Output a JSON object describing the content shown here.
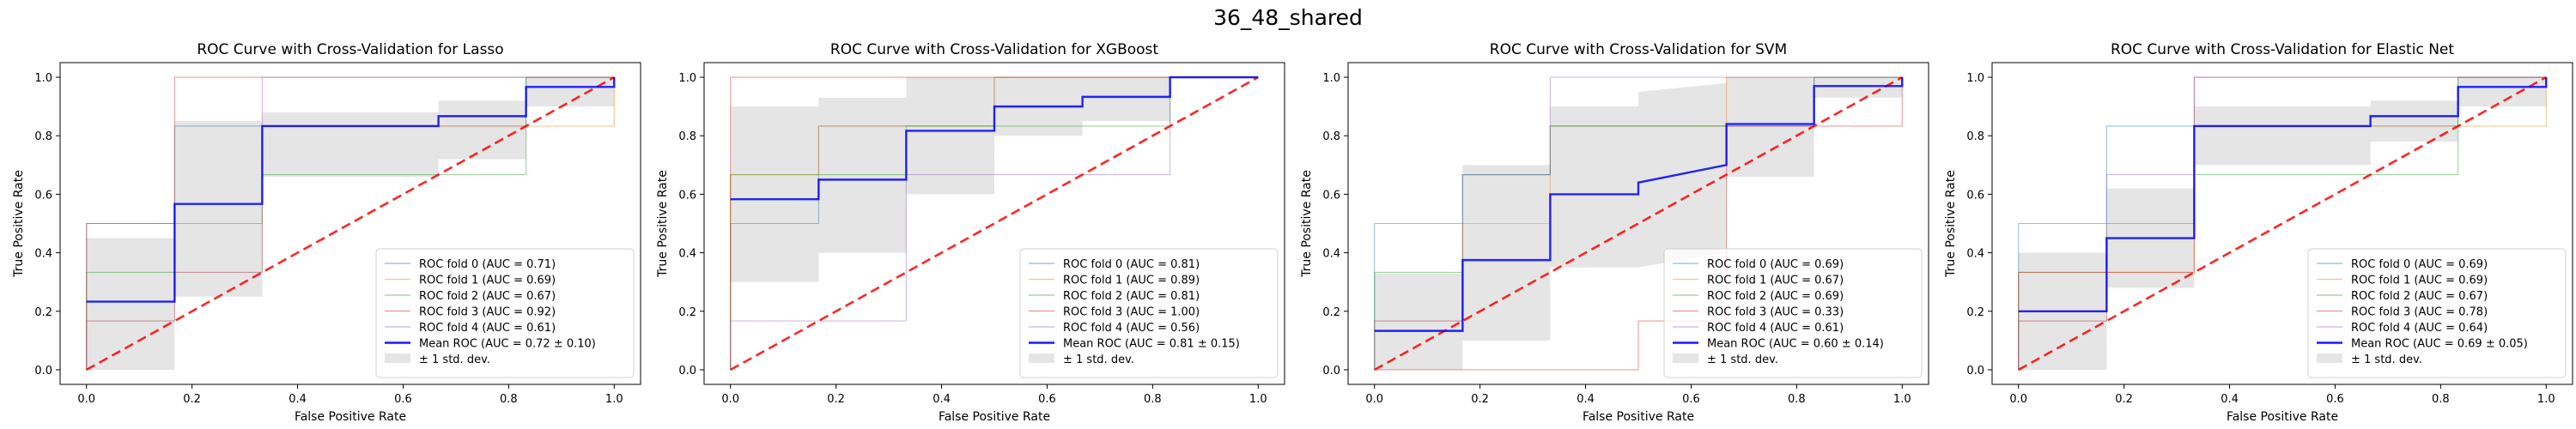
{
  "figure": {
    "title": "36_48_shared"
  },
  "colors": {
    "fold0": "#1f77b4",
    "fold1": "#ff7f0e",
    "fold2": "#2ca02c",
    "fold3": "#d62728",
    "fold4": "#9467bd",
    "mean": "#0000ff",
    "chance": "#ff0000",
    "band": "#c0c0c0"
  },
  "chart_data": [
    {
      "type": "line",
      "title": "ROC Curve with Cross-Validation for Lasso",
      "xlabel": "False Positive Rate",
      "ylabel": "True Positive Rate",
      "xlim": [
        -0.05,
        1.05
      ],
      "ylim": [
        -0.05,
        1.05
      ],
      "xticks": [
        "0.0",
        "0.2",
        "0.4",
        "0.6",
        "0.8",
        "1.0"
      ],
      "yticks": [
        "0.0",
        "0.2",
        "0.4",
        "0.6",
        "0.8",
        "1.0"
      ],
      "legend_position": "lower-right",
      "series": [
        {
          "name": "ROC fold 0 (AUC = 0.71)",
          "x": [
            0,
            0,
            0.167,
            0.167,
            0.333,
            0.333,
            0.833,
            0.833,
            1
          ],
          "y": [
            0,
            0.5,
            0.5,
            0.833,
            0.833,
            0.833,
            0.833,
            1,
            1
          ]
        },
        {
          "name": "ROC fold 1 (AUC = 0.69)",
          "x": [
            0,
            0,
            0.167,
            0.167,
            0.333,
            0.333,
            1,
            1
          ],
          "y": [
            0,
            0.167,
            0.167,
            0.333,
            0.333,
            0.833,
            0.833,
            1
          ]
        },
        {
          "name": "ROC fold 2 (AUC = 0.67)",
          "x": [
            0,
            0,
            0.167,
            0.167,
            0.333,
            0.333,
            0.833,
            0.833,
            1
          ],
          "y": [
            0,
            0.333,
            0.333,
            0.5,
            0.5,
            0.667,
            0.667,
            1,
            1
          ]
        },
        {
          "name": "ROC fold 3 (AUC = 0.92)",
          "x": [
            0,
            0,
            0.167,
            0.167,
            1
          ],
          "y": [
            0,
            0.5,
            0.5,
            1,
            1
          ]
        },
        {
          "name": "ROC fold 4 (AUC = 0.61)",
          "x": [
            0,
            0,
            0.167,
            0.167,
            0.333,
            0.333,
            1
          ],
          "y": [
            0,
            0.167,
            0.167,
            0.333,
            0.333,
            1,
            1
          ]
        }
      ],
      "mean": {
        "name": "Mean ROC (AUC = 0.72 ± 0.10)",
        "x": [
          0,
          0.167,
          0.167,
          0.333,
          0.333,
          0.667,
          0.667,
          0.833,
          0.833,
          1,
          1
        ],
        "y": [
          0.233,
          0.233,
          0.567,
          0.567,
          0.833,
          0.833,
          0.867,
          0.867,
          0.967,
          0.967,
          1
        ]
      },
      "band": {
        "name": "± 1 std. dev.",
        "x": [
          0,
          0.167,
          0.167,
          0.333,
          0.333,
          0.667,
          0.667,
          0.833,
          0.833,
          1,
          1
        ],
        "upper": [
          0.45,
          0.45,
          0.85,
          0.85,
          0.88,
          0.88,
          0.92,
          0.92,
          1,
          1,
          1
        ],
        "lower": [
          0,
          0,
          0.25,
          0.25,
          0.66,
          0.66,
          0.72,
          0.72,
          0.9,
          0.9,
          1
        ]
      }
    },
    {
      "type": "line",
      "title": "ROC Curve with Cross-Validation for XGBoost",
      "xlabel": "False Positive Rate",
      "ylabel": "True Positive Rate",
      "xlim": [
        -0.05,
        1.05
      ],
      "ylim": [
        -0.05,
        1.05
      ],
      "xticks": [
        "0.0",
        "0.2",
        "0.4",
        "0.6",
        "0.8",
        "1.0"
      ],
      "yticks": [
        "0.0",
        "0.2",
        "0.4",
        "0.6",
        "0.8",
        "1.0"
      ],
      "legend_position": "lower-right",
      "series": [
        {
          "name": "ROC fold 0 (AUC = 0.81)",
          "x": [
            0,
            0,
            0.167,
            0.167,
            0.5,
            0.5,
            0.833,
            0.833,
            1
          ],
          "y": [
            0,
            0.5,
            0.5,
            0.833,
            0.833,
            1,
            1,
            1,
            1
          ]
        },
        {
          "name": "ROC fold 1 (AUC = 0.89)",
          "x": [
            0,
            0,
            0.167,
            0.167,
            0.5,
            0.5,
            1
          ],
          "y": [
            0,
            0.667,
            0.667,
            0.833,
            0.833,
            1,
            1
          ]
        },
        {
          "name": "ROC fold 2 (AUC = 0.81)",
          "x": [
            0,
            0,
            0.333,
            0.333,
            0.833,
            0.833,
            1
          ],
          "y": [
            0,
            0.667,
            0.667,
            0.833,
            0.833,
            1,
            1
          ]
        },
        {
          "name": "ROC fold 3 (AUC = 1.00)",
          "x": [
            0,
            0,
            1
          ],
          "y": [
            0,
            1,
            1
          ]
        },
        {
          "name": "ROC fold 4 (AUC = 0.56)",
          "x": [
            0,
            0,
            0.333,
            0.333,
            0.833,
            0.833,
            1
          ],
          "y": [
            0,
            0.167,
            0.167,
            0.667,
            0.667,
            1,
            1
          ]
        }
      ],
      "mean": {
        "name": "Mean ROC (AUC = 0.81 ± 0.15)",
        "x": [
          0,
          0.167,
          0.167,
          0.333,
          0.333,
          0.5,
          0.5,
          0.667,
          0.667,
          0.833,
          0.833,
          1
        ],
        "y": [
          0.583,
          0.583,
          0.65,
          0.65,
          0.817,
          0.817,
          0.9,
          0.9,
          0.933,
          0.933,
          1,
          1
        ]
      },
      "band": {
        "name": "± 1 std. dev.",
        "x": [
          0,
          0.167,
          0.167,
          0.333,
          0.333,
          0.5,
          0.5,
          0.667,
          0.667,
          0.833,
          0.833,
          1
        ],
        "upper": [
          0.9,
          0.9,
          0.93,
          0.93,
          1,
          1,
          1,
          1,
          1,
          1,
          1,
          1
        ],
        "lower": [
          0.3,
          0.3,
          0.4,
          0.4,
          0.6,
          0.6,
          0.8,
          0.8,
          0.85,
          0.85,
          1,
          1
        ]
      }
    },
    {
      "type": "line",
      "title": "ROC Curve with Cross-Validation for SVM",
      "xlabel": "False Positive Rate",
      "ylabel": "True Positive Rate",
      "xlim": [
        -0.05,
        1.05
      ],
      "ylim": [
        -0.05,
        1.05
      ],
      "xticks": [
        "0.0",
        "0.2",
        "0.4",
        "0.6",
        "0.8",
        "1.0"
      ],
      "yticks": [
        "0.0",
        "0.2",
        "0.4",
        "0.6",
        "0.8",
        "1.0"
      ],
      "legend_position": "lower-right",
      "series": [
        {
          "name": "ROC fold 0 (AUC = 0.69)",
          "x": [
            0,
            0,
            0.167,
            0.167,
            0.333,
            0.333,
            0.833,
            0.833,
            1
          ],
          "y": [
            0,
            0.5,
            0.5,
            0.667,
            0.667,
            0.833,
            0.833,
            1,
            1
          ]
        },
        {
          "name": "ROC fold 1 (AUC = 0.67)",
          "x": [
            0,
            0,
            0.167,
            0.167,
            0.333,
            0.333,
            0.667,
            0.667,
            1
          ],
          "y": [
            0,
            0.167,
            0.167,
            0.5,
            0.5,
            0.833,
            0.833,
            1,
            1
          ]
        },
        {
          "name": "ROC fold 2 (AUC = 0.69)",
          "x": [
            0,
            0,
            0.167,
            0.167,
            0.333,
            0.333,
            0.833,
            0.833,
            1
          ],
          "y": [
            0,
            0.333,
            0.333,
            0.667,
            0.667,
            0.833,
            0.833,
            1,
            1
          ]
        },
        {
          "name": "ROC fold 3 (AUC = 0.33)",
          "x": [
            0,
            0.5,
            0.5,
            0.667,
            0.667,
            1,
            1
          ],
          "y": [
            0,
            0,
            0.167,
            0.167,
            0.833,
            0.833,
            1
          ]
        },
        {
          "name": "ROC fold 4 (AUC = 0.61)",
          "x": [
            0,
            0,
            0.167,
            0.167,
            0.333,
            0.333,
            1
          ],
          "y": [
            0,
            0.167,
            0.167,
            0.667,
            0.667,
            1,
            1
          ]
        }
      ],
      "mean": {
        "name": "Mean ROC (AUC = 0.60 ± 0.14)",
        "x": [
          0,
          0.167,
          0.167,
          0.333,
          0.333,
          0.5,
          0.5,
          0.667,
          0.667,
          0.833,
          0.833,
          1,
          1
        ],
        "y": [
          0.133,
          0.133,
          0.375,
          0.375,
          0.6,
          0.6,
          0.64,
          0.7,
          0.84,
          0.84,
          0.97,
          0.97,
          1
        ]
      },
      "band": {
        "name": "± 1 std. dev.",
        "x": [
          0,
          0.167,
          0.167,
          0.333,
          0.333,
          0.5,
          0.5,
          0.667,
          0.667,
          0.833,
          0.833,
          1,
          1
        ],
        "upper": [
          0.33,
          0.33,
          0.7,
          0.7,
          0.9,
          0.9,
          0.95,
          0.98,
          1,
          1,
          1,
          1,
          1
        ],
        "lower": [
          0,
          0,
          0.1,
          0.1,
          0.35,
          0.35,
          0.35,
          0.4,
          0.66,
          0.66,
          0.93,
          0.93,
          1
        ]
      }
    },
    {
      "type": "line",
      "title": "ROC Curve with Cross-Validation for Elastic Net",
      "xlabel": "False Positive Rate",
      "ylabel": "True Positive Rate",
      "xlim": [
        -0.05,
        1.05
      ],
      "ylim": [
        -0.05,
        1.05
      ],
      "xticks": [
        "0.0",
        "0.2",
        "0.4",
        "0.6",
        "0.8",
        "1.0"
      ],
      "yticks": [
        "0.0",
        "0.2",
        "0.4",
        "0.6",
        "0.8",
        "1.0"
      ],
      "legend_position": "lower-right",
      "series": [
        {
          "name": "ROC fold 0 (AUC = 0.69)",
          "x": [
            0,
            0,
            0.167,
            0.167,
            0.333,
            0.333,
            0.833,
            0.833,
            1
          ],
          "y": [
            0,
            0.5,
            0.5,
            0.833,
            0.833,
            0.833,
            0.833,
            1,
            1
          ]
        },
        {
          "name": "ROC fold 1 (AUC = 0.69)",
          "x": [
            0,
            0,
            0.167,
            0.167,
            0.333,
            0.333,
            1,
            1
          ],
          "y": [
            0,
            0.167,
            0.167,
            0.333,
            0.333,
            0.833,
            0.833,
            1
          ]
        },
        {
          "name": "ROC fold 2 (AUC = 0.67)",
          "x": [
            0,
            0,
            0.167,
            0.167,
            0.333,
            0.333,
            0.833,
            0.833,
            1
          ],
          "y": [
            0,
            0.333,
            0.333,
            0.5,
            0.5,
            0.667,
            0.667,
            1,
            1
          ]
        },
        {
          "name": "ROC fold 3 (AUC = 0.78)",
          "x": [
            0,
            0,
            0.333,
            0.333,
            1
          ],
          "y": [
            0,
            0.333,
            0.333,
            1,
            1
          ]
        },
        {
          "name": "ROC fold 4 (AUC = 0.64)",
          "x": [
            0,
            0,
            0.167,
            0.167,
            0.333,
            0.333,
            1
          ],
          "y": [
            0,
            0.167,
            0.167,
            0.667,
            0.667,
            1,
            1
          ]
        }
      ],
      "mean": {
        "name": "Mean ROC (AUC = 0.69 ± 0.05)",
        "x": [
          0,
          0.167,
          0.167,
          0.333,
          0.333,
          0.667,
          0.667,
          0.833,
          0.833,
          1,
          1
        ],
        "y": [
          0.2,
          0.2,
          0.45,
          0.45,
          0.833,
          0.833,
          0.867,
          0.867,
          0.967,
          0.967,
          1
        ]
      },
      "band": {
        "name": "± 1 std. dev.",
        "x": [
          0,
          0.167,
          0.167,
          0.333,
          0.333,
          0.667,
          0.667,
          0.833,
          0.833,
          1,
          1
        ],
        "upper": [
          0.4,
          0.4,
          0.62,
          0.62,
          0.9,
          0.9,
          0.92,
          0.92,
          1,
          1,
          1
        ],
        "lower": [
          0,
          0,
          0.28,
          0.28,
          0.7,
          0.7,
          0.78,
          0.78,
          0.9,
          0.9,
          1
        ]
      }
    }
  ]
}
